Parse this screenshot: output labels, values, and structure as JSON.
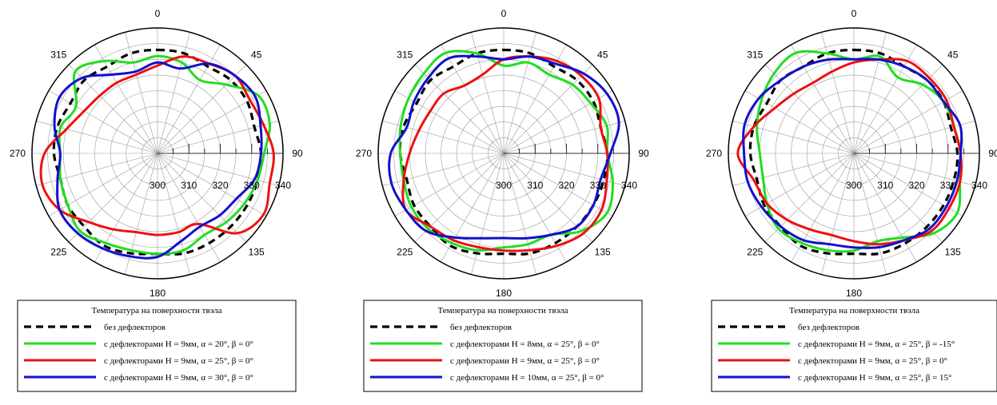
{
  "chart_data": [
    {
      "type": "polar-line",
      "angle_ticks": [
        "0",
        "45",
        "90",
        "135",
        "180",
        "225",
        "270",
        "315"
      ],
      "radial_ticks": [
        "300",
        "310",
        "320",
        "330",
        "340"
      ],
      "rlim": [
        300,
        340
      ],
      "angle_step_deg": 15,
      "grid": true,
      "legend_position": "bottom",
      "legend_title": "Температура на поверхности твэла",
      "series": [
        {
          "name": "без дефлекторов",
          "color": "#000000",
          "dash": true,
          "values": [
            333,
            333,
            332,
            333,
            333,
            332,
            333,
            333,
            333,
            333,
            333,
            333,
            332,
            333,
            334,
            333,
            333,
            332,
            333,
            333,
            332,
            333,
            332,
            333
          ]
        },
        {
          "name": "с дефлекторами H = 9мм, α = 20°, β = 0°",
          "color": "#22dd22",
          "dash": false,
          "values": [
            331,
            330,
            327,
            331,
            337,
            337,
            334,
            333,
            332,
            331,
            330,
            332,
            332,
            332,
            333,
            335,
            333,
            332,
            331,
            332,
            330,
            337,
            334,
            330
          ]
        },
        {
          "name": "с дефлекторами H = 9мм, α = 25°, β = 0°",
          "color": "#ee1111",
          "dash": false,
          "values": [
            328,
            332,
            333,
            335,
            334,
            335,
            337,
            337,
            339,
            336,
            326,
            326,
            326,
            326,
            328,
            331,
            336,
            338,
            336,
            330,
            327,
            326,
            326,
            326
          ]
        },
        {
          "name": "с дефлекторами H = 9мм, α = 30°, β = 0°",
          "color": "#1111cc",
          "dash": false,
          "values": [
            329,
            328,
            333,
            335,
            336,
            334,
            333,
            332,
            329,
            328,
            327,
            329,
            333,
            334,
            335,
            336,
            336,
            333,
            331,
            334,
            336,
            334,
            329,
            327
          ]
        }
      ]
    },
    {
      "type": "polar-line",
      "angle_ticks": [
        "0",
        "45",
        "90",
        "135",
        "180",
        "225",
        "270",
        "315"
      ],
      "radial_ticks": [
        "300",
        "310",
        "320",
        "330",
        "340"
      ],
      "rlim": [
        300,
        340
      ],
      "angle_step_deg": 15,
      "grid": true,
      "legend_position": "bottom",
      "legend_title": "Температура на поверхности твэла",
      "series": [
        {
          "name": "без дефлекторов",
          "color": "#000000",
          "dash": true,
          "values": [
            333,
            333,
            332,
            333,
            333,
            332,
            333,
            333,
            333,
            333,
            333,
            333,
            332,
            333,
            334,
            333,
            333,
            332,
            333,
            333,
            332,
            333,
            332,
            333
          ]
        },
        {
          "name": "с дефлекторами H = 8мм, α = 25°, β = 0°",
          "color": "#22dd22",
          "dash": false,
          "values": [
            328,
            330,
            329,
            331,
            332,
            334,
            333,
            336,
            338,
            335,
            330,
            330,
            330,
            332,
            333,
            334,
            334,
            333,
            333,
            334,
            335,
            336,
            337,
            333
          ]
        },
        {
          "name": "с дефлекторами H = 9мм, α = 25°, β = 0°",
          "color": "#ee1111",
          "dash": false,
          "values": [
            330,
            332,
            334,
            335,
            335,
            332,
            333,
            334,
            336,
            336,
            334,
            332,
            331,
            331,
            332,
            333,
            336,
            333,
            330,
            328,
            327,
            327,
            325,
            326
          ]
        },
        {
          "name": "с дефлекторами H = 10мм, α = 25°, β = 0°",
          "color": "#1111cc",
          "dash": false,
          "values": [
            330,
            332,
            333,
            336,
            338,
            338,
            334,
            332,
            333,
            333,
            330,
            328,
            327,
            328,
            331,
            335,
            336,
            337,
            336,
            332,
            333,
            334,
            335,
            332
          ]
        }
      ]
    },
    {
      "type": "polar-line",
      "angle_ticks": [
        "0",
        "45",
        "90",
        "135",
        "180",
        "225",
        "270",
        "315"
      ],
      "radial_ticks": [
        "300",
        "310",
        "320",
        "330",
        "340"
      ],
      "rlim": [
        300,
        340
      ],
      "angle_step_deg": 15,
      "grid": true,
      "legend_position": "bottom",
      "legend_title": "Температура на поверхности твэла",
      "series": [
        {
          "name": "без дефлекторов",
          "color": "#000000",
          "dash": true,
          "values": [
            333,
            333,
            332,
            333,
            333,
            332,
            333,
            333,
            333,
            333,
            333,
            333,
            332,
            333,
            334,
            333,
            333,
            332,
            333,
            333,
            332,
            333,
            332,
            333
          ]
        },
        {
          "name": "с дефлекторами H = 9мм, α = 25°, β = -15°",
          "color": "#22dd22",
          "dash": false,
          "values": [
            330,
            332,
            328,
            331,
            333,
            333,
            334,
            335,
            338,
            336,
            331,
            329,
            331,
            332,
            333,
            334,
            332,
            330,
            330,
            332,
            334,
            336,
            337,
            333
          ]
        },
        {
          "name": "с дефлекторами H = 9мм, α = 25°, β = 0°",
          "color": "#ee1111",
          "dash": false,
          "values": [
            329,
            331,
            334,
            334,
            334,
            333,
            334,
            335,
            335,
            335,
            332,
            330,
            328,
            327,
            328,
            330,
            332,
            333,
            337,
            333,
            329,
            327,
            326,
            327
          ]
        },
        {
          "name": "с дефлекторами H = 9мм, α = 25°, β = 15°",
          "color": "#1111cc",
          "dash": false,
          "values": [
            330,
            331,
            332,
            333,
            333,
            335,
            334,
            334,
            334,
            334,
            332,
            331,
            330,
            330,
            332,
            333,
            334,
            335,
            335,
            336,
            335,
            333,
            332,
            331
          ]
        }
      ]
    }
  ]
}
